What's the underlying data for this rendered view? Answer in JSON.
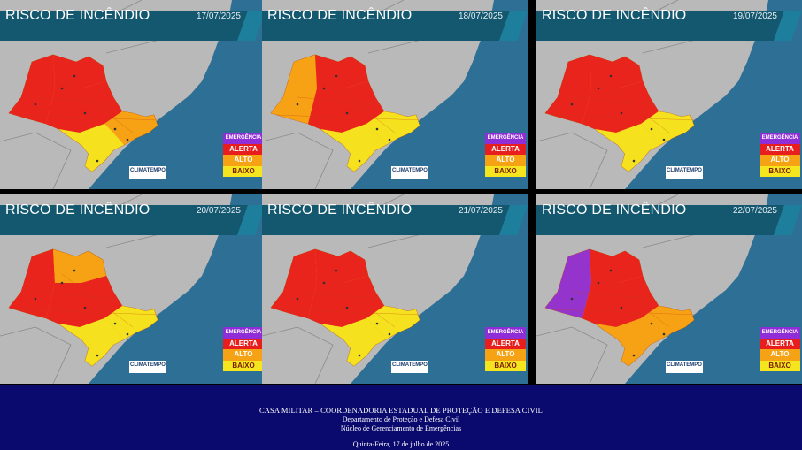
{
  "maps": [
    {
      "title": "RISCO DE INCÊNDIO",
      "date": "17/07/2025",
      "levels": [
        "alert",
        "alert",
        "alert",
        "high",
        "low"
      ]
    },
    {
      "title": "RISCO DE INCÊNDIO",
      "date": "18/07/2025",
      "levels": [
        "high",
        "alert",
        "alert",
        "low",
        "low"
      ]
    },
    {
      "title": "RISCO DE INCÊNDIO",
      "date": "19/07/2025",
      "levels": [
        "alert",
        "alert",
        "alert",
        "low",
        "low"
      ]
    },
    {
      "title": "RISCO DE INCÊNDIO",
      "date": "20/07/2025",
      "levels": [
        "alert",
        "high",
        "alert",
        "low",
        "low"
      ]
    },
    {
      "title": "RISCO DE INCÊNDIO",
      "date": "21/07/2025",
      "levels": [
        "alert",
        "alert",
        "alert",
        "low",
        "low"
      ]
    },
    {
      "title": "RISCO DE INCÊNDIO",
      "date": "22/07/2025",
      "levels": [
        "emergency",
        "alert",
        "alert",
        "high",
        "high"
      ]
    }
  ],
  "legend": {
    "emergency": "EMERGÊNCIA",
    "alert": "ALERTA",
    "high": "ALTO",
    "low": "BAIXO"
  },
  "colors": {
    "emergency": "#8f2ed6",
    "alert": "#e81e1e",
    "high": "#f5a214",
    "low": "#f4e51e",
    "ocean": "#2d6f95",
    "land": "#b9b9b9",
    "banner": "#14586f"
  },
  "logo": "CLIMATEMPO",
  "footer": {
    "line1": "CASA MILITAR – COORDENADORIA ESTADUAL DE PROTEÇÃO E DEFESA CIVIL",
    "line2": "Departamento de Proteção e Defesa Civil",
    "line3": "Núcleo de Gerenciamento de Emergências",
    "date": "Quinta-Feira, 17 de julho de 2025"
  }
}
